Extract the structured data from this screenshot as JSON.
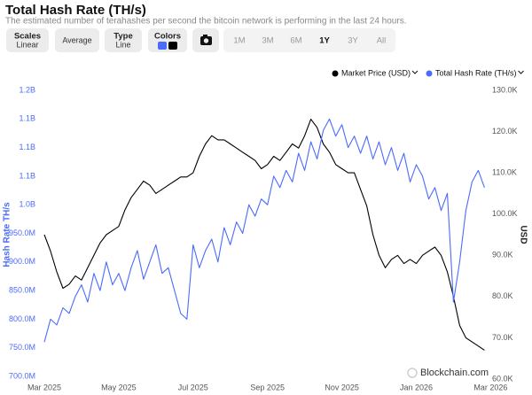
{
  "page": {
    "title": "Total Hash Rate (TH/s)",
    "subtitle": "The estimated number of terahashes per second the bitcoin network is performing in the last 24 hours.",
    "toolbar": {
      "scales": {
        "label": "Scales",
        "value": "Linear"
      },
      "average": "Average",
      "type": {
        "label": "Type",
        "value": "Line"
      },
      "colors": "Colors",
      "ranges": [
        "1M",
        "3M",
        "6M",
        "1Y",
        "3Y",
        "All"
      ],
      "selected_range": "1Y"
    },
    "watermark": "Blockchain.com"
  },
  "chart_data": {
    "type": "line",
    "categories": [
      "Mar 2025",
      null,
      null,
      null,
      null,
      null,
      null,
      null,
      null,
      null,
      null,
      null,
      "May 2025",
      null,
      null,
      null,
      null,
      null,
      null,
      null,
      null,
      null,
      null,
      null,
      "Jul 2025",
      null,
      null,
      null,
      null,
      null,
      null,
      null,
      null,
      null,
      null,
      null,
      "Sep 2025",
      null,
      null,
      null,
      null,
      null,
      null,
      null,
      null,
      null,
      null,
      null,
      "Nov 2025",
      null,
      null,
      null,
      null,
      null,
      null,
      null,
      null,
      null,
      null,
      null,
      "Jan 2026",
      null,
      null,
      null,
      null,
      null,
      null,
      null,
      null,
      null,
      null,
      null,
      "Mar 2026"
    ],
    "series": [
      {
        "name": "Market Price (USD)",
        "color": "#000000",
        "axis": "y2",
        "values": [
          95000,
          91000,
          86000,
          82000,
          83000,
          85000,
          84000,
          87000,
          90000,
          93000,
          95000,
          96000,
          97000,
          101000,
          104000,
          106000,
          108000,
          107000,
          105000,
          106000,
          107000,
          108000,
          109000,
          109000,
          110000,
          114000,
          117000,
          119000,
          118000,
          118000,
          117000,
          116000,
          115000,
          114000,
          113000,
          111000,
          112000,
          114000,
          113000,
          115000,
          117000,
          116000,
          119000,
          123000,
          121000,
          117000,
          115000,
          112000,
          111000,
          110000,
          110000,
          106000,
          102000,
          95000,
          90000,
          87000,
          89000,
          90000,
          88000,
          89000,
          88000,
          90000,
          91000,
          92000,
          90000,
          86000,
          80000,
          73000,
          70000,
          69000,
          68000,
          67000,
          null
        ]
      },
      {
        "name": "Total Hash Rate (TH/s)",
        "color": "#4b6bfb",
        "values": [
          760,
          800,
          790,
          820,
          810,
          840,
          860,
          830,
          880,
          850,
          900,
          860,
          880,
          850,
          890,
          920,
          870,
          900,
          930,
          880,
          890,
          850,
          810,
          800,
          930,
          890,
          920,
          940,
          900,
          960,
          930,
          970,
          950,
          1000,
          980,
          1010,
          1000,
          1050,
          1030,
          1060,
          1040,
          1090,
          1060,
          1110,
          1080,
          1130,
          1150,
          1120,
          1140,
          1100,
          1120,
          1090,
          1120,
          1080,
          1110,
          1070,
          1100,
          1060,
          1090,
          1040,
          1070,
          1050,
          1010,
          1030,
          990,
          1020,
          830,
          900,
          990,
          1040,
          1060,
          1030,
          null
        ]
      }
    ],
    "y_label": "Hash Rate TH/s",
    "y2_label": "USD",
    "ylim": [
      700,
      1200
    ],
    "yticks": [
      {
        "value": 700,
        "label": "700.0M"
      },
      {
        "value": 750,
        "label": "750.0M"
      },
      {
        "value": 800,
        "label": "800.0M"
      },
      {
        "value": 850,
        "label": "850.0M"
      },
      {
        "value": 900,
        "label": "900.0M"
      },
      {
        "value": 950,
        "label": "950.0M"
      },
      {
        "value": 1000,
        "label": "1.0B"
      },
      {
        "value": 1050,
        "label": "1.1B"
      },
      {
        "value": 1100,
        "label": "1.1B"
      },
      {
        "value": 1150,
        "label": "1.1B"
      },
      {
        "value": 1200,
        "label": "1.2B"
      }
    ],
    "y2lim": [
      60000,
      130000
    ],
    "y2ticks": [
      {
        "value": 60000,
        "label": "60.0K"
      },
      {
        "value": 70000,
        "label": "70.0K"
      },
      {
        "value": 80000,
        "label": "80.0K"
      },
      {
        "value": 90000,
        "label": "90.0K"
      },
      {
        "value": 100000,
        "label": "100.0K"
      },
      {
        "value": 110000,
        "label": "110.0K"
      },
      {
        "value": 120000,
        "label": "120.0K"
      },
      {
        "value": 130000,
        "label": "130.0K"
      }
    ],
    "grid": false,
    "legend": "top-right"
  }
}
